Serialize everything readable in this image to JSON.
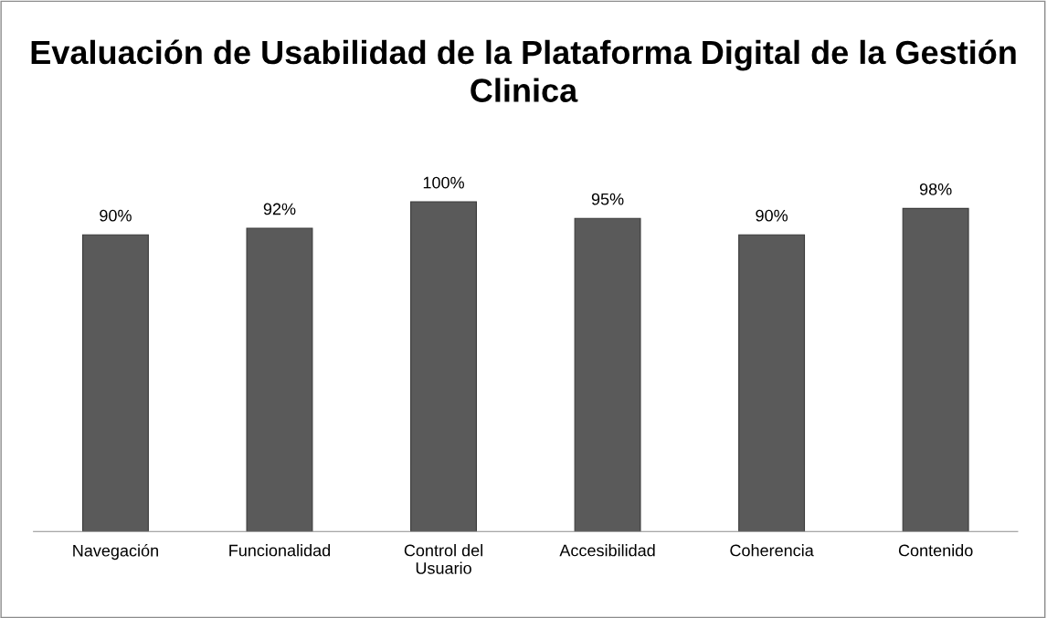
{
  "chart_data": {
    "type": "bar",
    "title": "Evaluación de Usabilidad de la Plataforma Digital de la Gestión Clinica",
    "categories": [
      "Navegación",
      "Funcionalidad",
      "Control del\nUsuario",
      "Accesibilidad",
      "Coherencia",
      "Contenido"
    ],
    "values": [
      90,
      92,
      100,
      95,
      90,
      98
    ],
    "value_labels": [
      "90%",
      "92%",
      "100%",
      "95%",
      "90%",
      "98%"
    ],
    "color": "#5a5a5a",
    "tick_labels": "x",
    "grid": false,
    "legend": false
  }
}
